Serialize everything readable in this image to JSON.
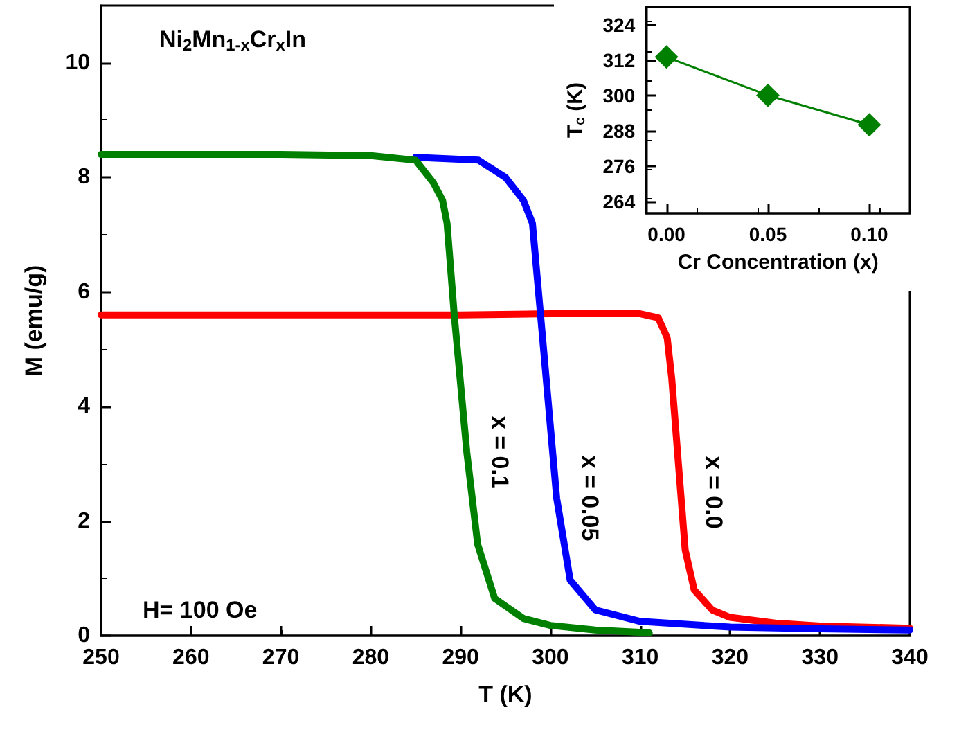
{
  "chart_data": [
    {
      "type": "line",
      "xlabel": "T (K)",
      "ylabel": "M (emu/g)",
      "annotations": [
        "Ni$_{2}$Mn$_{1-x}$Cr$_{x}$In",
        "H= 100 Oe"
      ],
      "xlim": [
        250,
        340
      ],
      "xticks": [
        250,
        260,
        270,
        280,
        290,
        300,
        310,
        320,
        330,
        340
      ],
      "ylim": [
        0,
        11
      ],
      "yticks": [
        0,
        2,
        4,
        6,
        8,
        10
      ],
      "grid": false,
      "legend": false,
      "marker": "none",
      "line_style": "solid",
      "series": [
        {
          "name": "x = 0.0",
          "color": "#ff0000",
          "x": [
            250,
            270,
            290,
            300,
            310,
            312,
            313,
            313.5,
            314,
            314.5,
            315,
            316,
            318,
            320,
            325,
            330,
            340
          ],
          "values": [
            5.6,
            5.6,
            5.6,
            5.62,
            5.62,
            5.55,
            5.2,
            4.5,
            3.5,
            2.5,
            1.5,
            0.8,
            0.45,
            0.32,
            0.22,
            0.17,
            0.13
          ]
        },
        {
          "name": "x = 0.05",
          "color": "#0000ff",
          "x": [
            285,
            292,
            295,
            297,
            298,
            299.3,
            300.7,
            302.2,
            305,
            310,
            320,
            330,
            340
          ],
          "values": [
            8.35,
            8.3,
            8.0,
            7.6,
            7.2,
            4.9,
            2.4,
            0.97,
            0.45,
            0.25,
            0.15,
            0.12,
            0.1
          ]
        },
        {
          "name": "x = 0.1",
          "color": "#008000",
          "x": [
            250,
            270,
            280,
            285,
            287,
            288,
            288.5,
            289.3,
            290.7,
            291.9,
            293.8,
            297,
            300,
            305,
            311
          ],
          "values": [
            8.4,
            8.4,
            8.38,
            8.3,
            7.9,
            7.6,
            7.2,
            5.6,
            3.2,
            1.6,
            0.65,
            0.3,
            0.18,
            0.1,
            0.05
          ]
        }
      ]
    },
    {
      "type": "line",
      "xlabel": "Cr Concentration (x)",
      "ylabel": "T$_{c}$ (K)",
      "xlim": [
        -0.01,
        0.12
      ],
      "xticks": [
        {
          "value": 0,
          "label": "0.00"
        },
        {
          "value": 0.05,
          "label": "0.05"
        },
        {
          "value": 0.1,
          "label": "0.10"
        }
      ],
      "ylim": [
        260,
        330
      ],
      "yticks": [
        264,
        276,
        288,
        300,
        312,
        324
      ],
      "grid": false,
      "legend": false,
      "marker": "diamond",
      "line_style": "solid",
      "series": [
        {
          "color": "#008000",
          "x": [
            0,
            0.05,
            0.1
          ],
          "values": [
            313,
            300,
            290
          ]
        }
      ]
    }
  ]
}
